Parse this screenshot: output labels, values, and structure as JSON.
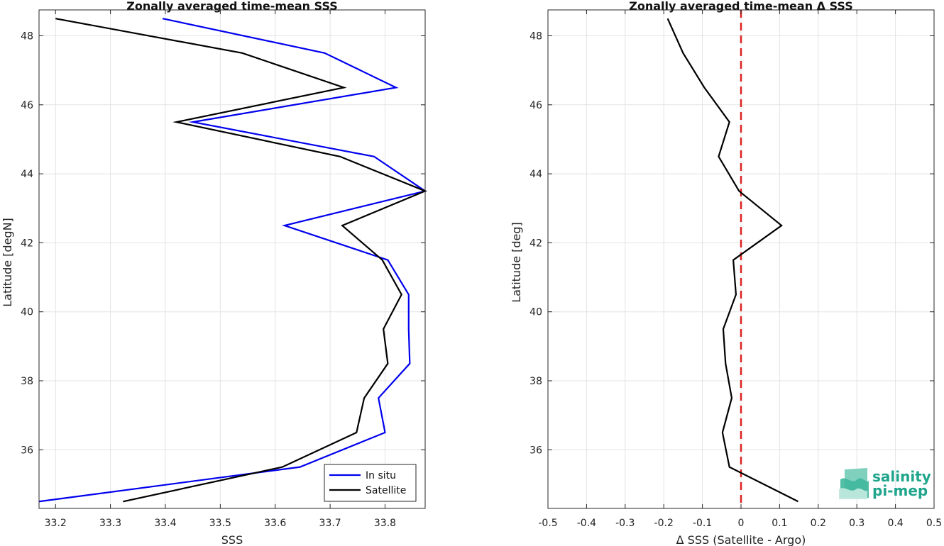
{
  "chart_data": [
    {
      "type": "line",
      "title": "Zonally averaged time-mean SSS",
      "xlabel": "SSS",
      "ylabel": "Latitude [degN]",
      "xlim": [
        33.17,
        33.873
      ],
      "ylim": [
        34.3,
        48.75
      ],
      "xticks": [
        33.2,
        33.3,
        33.4,
        33.5,
        33.6,
        33.7,
        33.8
      ],
      "yticks": [
        36,
        38,
        40,
        42,
        44,
        46,
        48
      ],
      "grid": true,
      "legend_position": "bottom-right",
      "series": [
        {
          "name": "In situ",
          "color": "#0000ee",
          "points": [
            [
              33.17,
              34.5
            ],
            [
              33.645,
              35.5
            ],
            [
              33.8,
              36.5
            ],
            [
              33.788,
              37.5
            ],
            [
              33.845,
              38.5
            ],
            [
              33.843,
              39.5
            ],
            [
              33.843,
              40.5
            ],
            [
              33.805,
              41.5
            ],
            [
              33.617,
              42.5
            ],
            [
              33.873,
              43.5
            ],
            [
              33.78,
              44.5
            ],
            [
              33.45,
              45.5
            ],
            [
              33.82,
              46.5
            ],
            [
              33.69,
              47.5
            ],
            [
              33.395,
              48.5
            ]
          ]
        },
        {
          "name": "Satellite",
          "color": "#000000",
          "points": [
            [
              33.323,
              34.5
            ],
            [
              33.613,
              35.5
            ],
            [
              33.748,
              36.5
            ],
            [
              33.762,
              37.5
            ],
            [
              33.805,
              38.5
            ],
            [
              33.797,
              39.5
            ],
            [
              33.83,
              40.5
            ],
            [
              33.795,
              41.5
            ],
            [
              33.722,
              42.5
            ],
            [
              33.873,
              43.5
            ],
            [
              33.718,
              44.5
            ],
            [
              33.42,
              45.5
            ],
            [
              33.725,
              46.5
            ],
            [
              33.54,
              47.5
            ],
            [
              33.2,
              48.5
            ]
          ]
        }
      ]
    },
    {
      "type": "line",
      "title": "Zonally averaged time-mean Δ SSS",
      "xlabel": "Δ SSS (Satellite - Argo)",
      "ylabel": "Latitude [deg]",
      "xlim": [
        -0.5,
        0.5
      ],
      "ylim": [
        34.3,
        48.75
      ],
      "xticks": [
        -0.5,
        -0.4,
        -0.3,
        -0.2,
        -0.1,
        0,
        0.1,
        0.2,
        0.3,
        0.4,
        0.5
      ],
      "xticklabels": [
        "-0.5",
        "-0.4",
        "-0.3",
        "-0.2",
        "-0.1",
        "0",
        "0.1",
        "0.2",
        "0.3",
        "0.4",
        "0.5"
      ],
      "yticks": [
        36,
        38,
        40,
        42,
        44,
        46,
        48
      ],
      "grid": true,
      "reference_line": {
        "x": 0,
        "color": "#dd2222",
        "style": "dashed"
      },
      "series": [
        {
          "color": "#000000",
          "points": [
            [
              0.148,
              34.5
            ],
            [
              -0.03,
              35.5
            ],
            [
              -0.048,
              36.5
            ],
            [
              -0.024,
              37.5
            ],
            [
              -0.04,
              38.5
            ],
            [
              -0.046,
              39.5
            ],
            [
              -0.013,
              40.5
            ],
            [
              -0.02,
              41.5
            ],
            [
              0.105,
              42.5
            ],
            [
              -0.005,
              43.5
            ],
            [
              -0.058,
              44.5
            ],
            [
              -0.03,
              45.5
            ],
            [
              -0.095,
              46.5
            ],
            [
              -0.15,
              47.5
            ],
            [
              -0.19,
              48.5
            ]
          ]
        }
      ]
    }
  ],
  "logo": {
    "line1": "salinity",
    "line2": "pi-mep"
  }
}
